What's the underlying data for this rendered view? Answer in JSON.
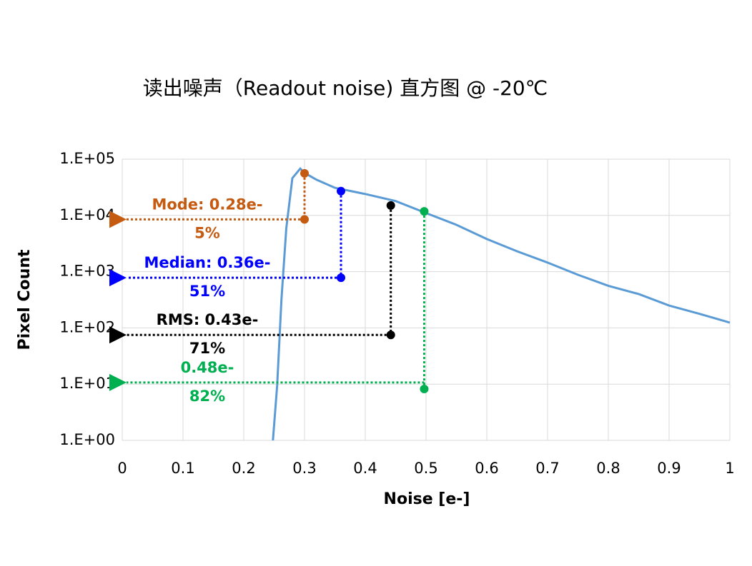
{
  "chart_data": {
    "type": "line",
    "title": "读出噪声（Readout noise) 直方图 @ -20℃",
    "x_label": "Noise [e-]",
    "y_label": "Pixel Count",
    "log_y": true,
    "grid": true,
    "xlim": [
      0,
      1
    ],
    "xticks": [
      0,
      0.1,
      0.2,
      0.3,
      0.4,
      0.5,
      0.6,
      0.7,
      0.8,
      0.9,
      1
    ],
    "ylim": [
      1,
      100000
    ],
    "yticks": [
      {
        "value": 1,
        "label": "1.E+00"
      },
      {
        "value": 10,
        "label": "1.E+01"
      },
      {
        "value": 100,
        "label": "1.E+02"
      },
      {
        "value": 1000,
        "label": "1.E+03"
      },
      {
        "value": 10000,
        "label": "1.E+04"
      },
      {
        "value": 100000,
        "label": "1.E+05"
      }
    ],
    "series": [
      {
        "color": "#5b9bd5",
        "x": [
          0.248,
          0.255,
          0.262,
          0.27,
          0.28,
          0.293,
          0.3,
          0.32,
          0.35,
          0.4,
          0.45,
          0.5,
          0.55,
          0.6,
          0.65,
          0.7,
          0.75,
          0.8,
          0.85,
          0.9,
          0.95,
          1.0
        ],
        "values": [
          1,
          9.5,
          316,
          5900,
          46000,
          68000,
          57000,
          43000,
          31000,
          24000,
          18000,
          11000,
          6800,
          3800,
          2300,
          1450,
          880,
          560,
          400,
          250,
          178,
          124
        ]
      }
    ],
    "annotations": [
      {
        "text": "Mode: 0.28e-",
        "subtext": "5%",
        "color": "#c55a11",
        "x": 0.3,
        "top": 56000,
        "bottom": 8500,
        "arrow_y": 8500
      },
      {
        "text": "Median: 0.36e-",
        "subtext": "51%",
        "color": "#0000ff",
        "x": 0.36,
        "top": 27000,
        "bottom": 780,
        "arrow_y": 780
      },
      {
        "text": "RMS: 0.43e-",
        "subtext": "71%",
        "color": "#000000",
        "x": 0.442,
        "top": 15000,
        "bottom": 75,
        "arrow_y": 75
      },
      {
        "text": "0.48e-",
        "subtext": "82%",
        "color": "#00b050",
        "x": 0.497,
        "top": 11800,
        "bottom": 8.2,
        "arrow_y": 10.7
      }
    ]
  }
}
